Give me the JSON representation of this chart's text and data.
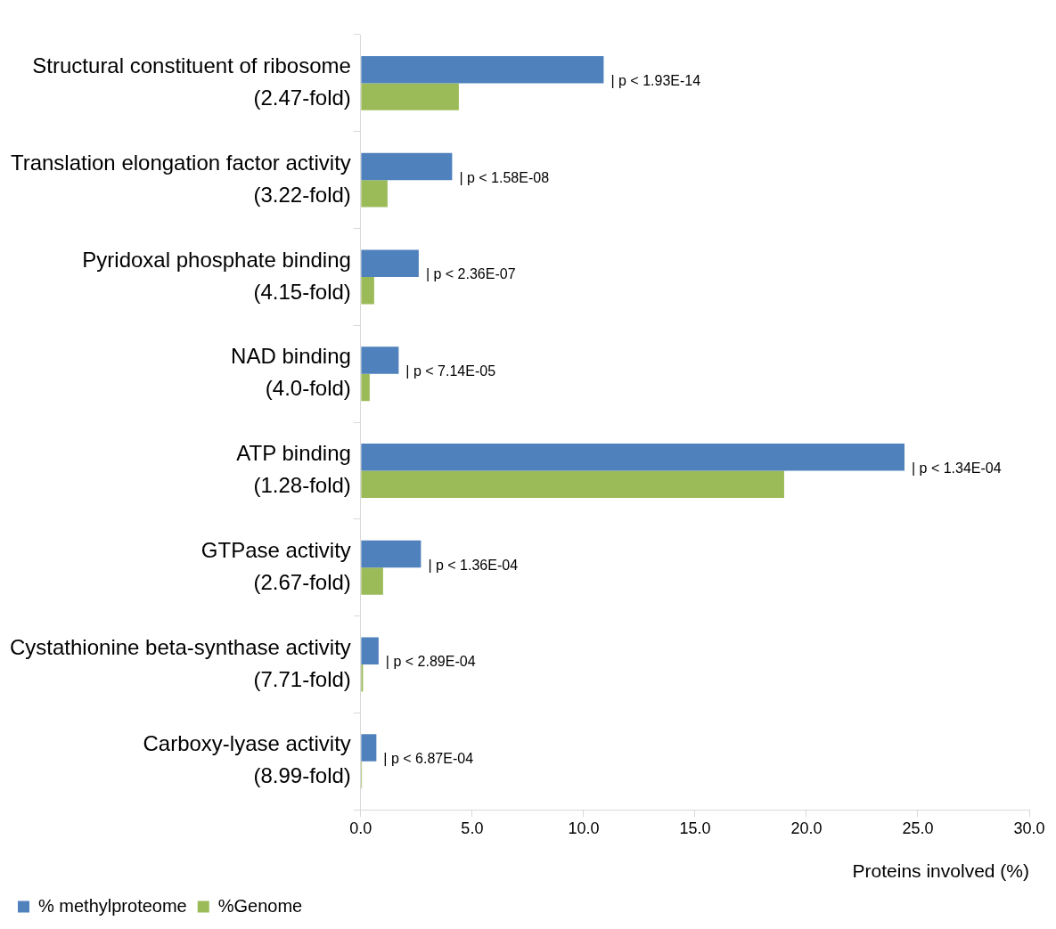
{
  "chart_data": {
    "type": "bar",
    "orientation": "horizontal",
    "categories": [
      "Structural constituent of ribosome (2.47-fold)",
      "Translation elongation factor activity (3.22-fold)",
      "Pyridoxal phosphate binding (4.15-fold)",
      "NAD binding (4.0-fold)",
      "ATP binding (1.28-fold)",
      "GTPase activity (2.67-fold)",
      "Cystathionine beta-synthase activity (7.71-fold)",
      "Carboxy-lyase activity (8.99-fold)"
    ],
    "series": [
      {
        "name": "% methylproteome",
        "color": "#4f81bd",
        "values": [
          10.9,
          4.1,
          2.6,
          1.7,
          24.4,
          2.7,
          0.8,
          0.7
        ]
      },
      {
        "name": "%Genome",
        "color": "#9bbb59",
        "values": [
          4.4,
          1.2,
          0.6,
          0.4,
          19.0,
          1.0,
          0.1,
          0.05
        ]
      }
    ],
    "xlim": [
      0,
      30
    ],
    "xticks": [
      {
        "value": 0,
        "label": "0.0"
      },
      {
        "value": 5,
        "label": "5.0"
      },
      {
        "value": 10,
        "label": "10.0"
      },
      {
        "value": 15,
        "label": "15.0"
      },
      {
        "value": 20,
        "label": "20.0"
      },
      {
        "value": 25,
        "label": "25.0"
      },
      {
        "value": 30,
        "label": "30.0"
      }
    ],
    "xlabel": "Proteins involved (%)",
    "grid": false,
    "legend": "bottom left",
    "annotations": [
      {
        "text": "| p < 1.93E-14",
        "x": 10.9,
        "y": "Structural constituent of ribosome (2.47-fold)"
      },
      {
        "text": "| p < 1.58E-08",
        "x": 4.1,
        "y": "Translation elongation factor activity (3.22-fold)"
      },
      {
        "text": "| p < 2.36E-07",
        "x": 2.6,
        "y": "Pyridoxal phosphate binding (4.15-fold)"
      },
      {
        "text": "| p < 7.14E-05",
        "x": 1.7,
        "y": "NAD binding (4.0-fold)"
      },
      {
        "text": "| p < 1.34E-04",
        "x": 24.4,
        "y": "ATP binding (1.28-fold)"
      },
      {
        "text": "| p < 1.36E-04",
        "x": 2.7,
        "y": "GTPase activity (2.67-fold)"
      },
      {
        "text": "| p < 2.89E-04",
        "x": 0.8,
        "y": "Cystathionine beta-synthase activity (7.71-fold)"
      },
      {
        "text": "| p < 6.87E-04",
        "x": 0.7,
        "y": "Carboxy-lyase activity (8.99-fold)"
      }
    ]
  }
}
